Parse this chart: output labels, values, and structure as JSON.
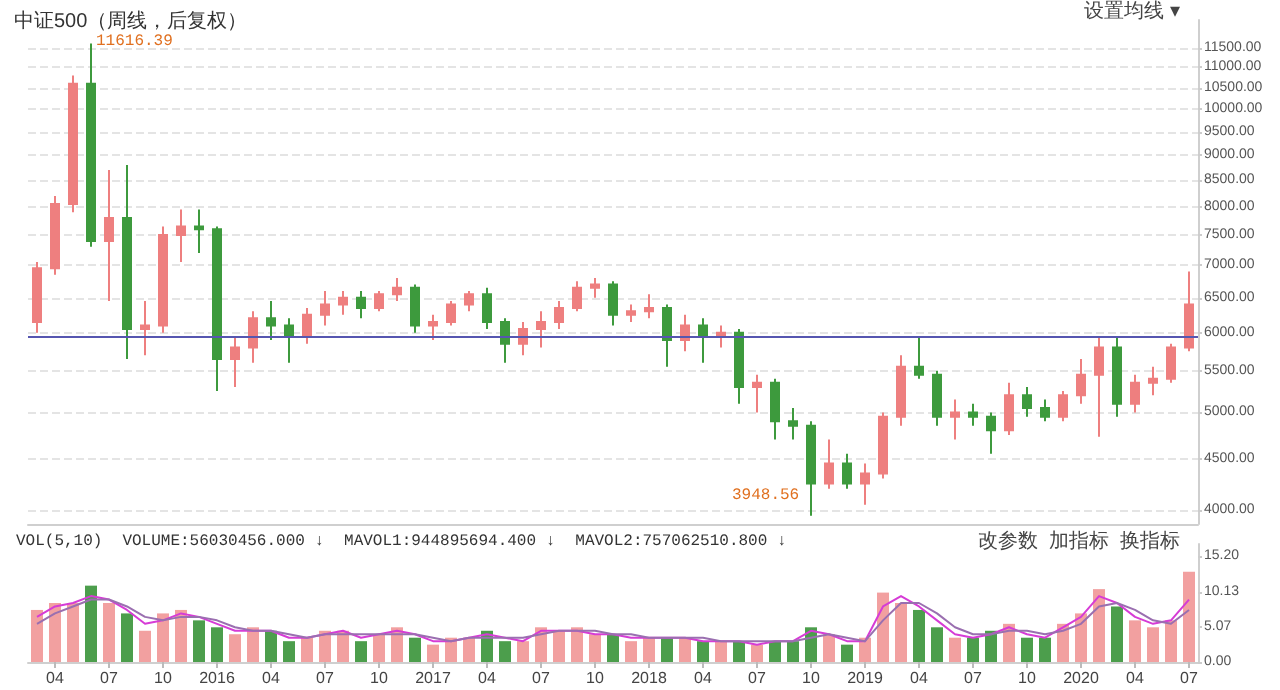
{
  "chart_data": [
    {
      "type": "candlestick",
      "title": "中证500（周线，后复权）",
      "categories": [
        null,
        "04",
        null,
        null,
        "07",
        null,
        null,
        "10",
        null,
        null,
        "2016",
        null,
        null,
        "04",
        null,
        null,
        "07",
        null,
        null,
        "10",
        null,
        null,
        "2017",
        null,
        null,
        "04",
        null,
        null,
        "07",
        null,
        null,
        "10",
        null,
        null,
        "2018",
        null,
        null,
        "04",
        null,
        null,
        "07",
        null,
        null,
        "10",
        null,
        null,
        "2019",
        null,
        null,
        "04",
        null,
        null,
        "07",
        null,
        null,
        "10",
        null,
        null,
        "2020",
        null,
        null,
        "04",
        null,
        null,
        "07"
      ],
      "ohlc": [
        [
          6150,
          7050,
          6000,
          6950
        ],
        [
          6950,
          8200,
          6850,
          8050
        ],
        [
          8050,
          10800,
          7900,
          10600
        ],
        [
          10600,
          11616.39,
          7300,
          7400
        ],
        [
          7400,
          8700,
          6450,
          7800
        ],
        [
          7800,
          8800,
          5650,
          6050
        ],
        [
          6050,
          6450,
          5700,
          6100
        ],
        [
          6100,
          7650,
          6000,
          7500
        ],
        [
          7500,
          7950,
          7050,
          7650
        ],
        [
          7650,
          7950,
          7200,
          7600
        ],
        [
          7600,
          7650,
          5250,
          5650
        ],
        [
          5650,
          5950,
          5300,
          5800
        ],
        [
          5800,
          6300,
          5600,
          6200
        ],
        [
          6200,
          6450,
          5900,
          6100
        ],
        [
          6100,
          6200,
          5600,
          5950
        ],
        [
          5950,
          6350,
          5850,
          6250
        ],
        [
          6250,
          6600,
          6100,
          6400
        ],
        [
          6400,
          6600,
          6250,
          6500
        ],
        [
          6500,
          6600,
          6200,
          6350
        ],
        [
          6350,
          6600,
          6300,
          6550
        ],
        [
          6550,
          6800,
          6450,
          6650
        ],
        [
          6650,
          6700,
          6000,
          6100
        ],
        [
          6100,
          6250,
          5900,
          6150
        ],
        [
          6150,
          6450,
          6100,
          6400
        ],
        [
          6400,
          6600,
          6300,
          6550
        ],
        [
          6550,
          6650,
          6050,
          6150
        ],
        [
          6150,
          6200,
          5600,
          5850
        ],
        [
          5850,
          6150,
          5700,
          6050
        ],
        [
          6050,
          6300,
          5800,
          6150
        ],
        [
          6150,
          6450,
          6050,
          6350
        ],
        [
          6350,
          6750,
          6300,
          6650
        ],
        [
          6650,
          6800,
          6500,
          6700
        ],
        [
          6700,
          6750,
          6100,
          6250
        ],
        [
          6250,
          6400,
          6150,
          6300
        ],
        [
          6300,
          6550,
          6200,
          6350
        ],
        [
          6350,
          6400,
          5550,
          5900
        ],
        [
          5900,
          6250,
          5750,
          6100
        ],
        [
          6100,
          6200,
          5600,
          5950
        ],
        [
          5950,
          6100,
          5800,
          6000
        ],
        [
          6000,
          6050,
          5100,
          5300
        ],
        [
          5300,
          5450,
          5000,
          5350
        ],
        [
          5350,
          5400,
          4700,
          4900
        ],
        [
          4900,
          5050,
          4700,
          4850
        ],
        [
          4850,
          4900,
          3948.56,
          4250
        ],
        [
          4250,
          4700,
          4200,
          4450
        ],
        [
          4450,
          4550,
          4200,
          4250
        ],
        [
          4250,
          4450,
          4050,
          4350
        ],
        [
          4350,
          5000,
          4300,
          4950
        ],
        [
          4950,
          5700,
          4850,
          5550
        ],
        [
          5550,
          5930,
          5400,
          5450
        ],
        [
          5450,
          5500,
          4850,
          4950
        ],
        [
          4950,
          5150,
          4700,
          5000
        ],
        [
          5000,
          5100,
          4850,
          4950
        ],
        [
          4950,
          5000,
          4550,
          4800
        ],
        [
          4800,
          5350,
          4750,
          5200
        ],
        [
          5200,
          5300,
          4950,
          5050
        ],
        [
          5050,
          5150,
          4900,
          4950
        ],
        [
          4950,
          5250,
          4900,
          5200
        ],
        [
          5200,
          5650,
          5100,
          5450
        ],
        [
          5450,
          5930,
          4730,
          5800
        ],
        [
          5800,
          5950,
          4950,
          5100
        ],
        [
          5100,
          5450,
          5000,
          5350
        ],
        [
          5350,
          5550,
          5200,
          5400
        ],
        [
          5400,
          5850,
          5350,
          5800
        ],
        [
          5800,
          6900,
          5750,
          6400
        ]
      ],
      "colors": [
        "#ee7f7f",
        "#ee7f7f",
        "#ee7f7f",
        "#3d9a3d",
        "#ee7f7f",
        "#3d9a3d",
        "#ee7f7f",
        "#ee7f7f",
        "#ee7f7f",
        "#3d9a3d",
        "#3d9a3d",
        "#ee7f7f",
        "#ee7f7f",
        "#3d9a3d",
        "#3d9a3d",
        "#ee7f7f",
        "#ee7f7f",
        "#ee7f7f",
        "#3d9a3d",
        "#ee7f7f",
        "#ee7f7f",
        "#3d9a3d",
        "#ee7f7f",
        "#ee7f7f",
        "#ee7f7f",
        "#3d9a3d",
        "#3d9a3d",
        "#ee7f7f",
        "#ee7f7f",
        "#ee7f7f",
        "#ee7f7f",
        "#ee7f7f",
        "#3d9a3d",
        "#ee7f7f",
        "#ee7f7f",
        "#3d9a3d",
        "#ee7f7f",
        "#3d9a3d",
        "#ee7f7f",
        "#3d9a3d",
        "#ee7f7f",
        "#3d9a3d",
        "#3d9a3d",
        "#3d9a3d",
        "#ee7f7f",
        "#3d9a3d",
        "#ee7f7f",
        "#ee7f7f",
        "#ee7f7f",
        "#3d9a3d",
        "#3d9a3d",
        "#ee7f7f",
        "#3d9a3d",
        "#3d9a3d",
        "#ee7f7f",
        "#3d9a3d",
        "#3d9a3d",
        "#ee7f7f",
        "#ee7f7f",
        "#ee7f7f",
        "#3d9a3d",
        "#ee7f7f",
        "#ee7f7f",
        "#ee7f7f",
        "#ee7f7f"
      ],
      "ylim": [
        3875,
        12260
      ],
      "log": "y",
      "yticks": [
        {
          "value": 4000,
          "label": "4000.00"
        },
        {
          "value": 4500,
          "label": "4500.00"
        },
        {
          "value": 5000,
          "label": "5000.00"
        },
        {
          "value": 5500,
          "label": "5500.00"
        },
        {
          "value": 6000,
          "label": "6000.00"
        },
        {
          "value": 6500,
          "label": "6500.00"
        },
        {
          "value": 7000,
          "label": "7000.00"
        },
        {
          "value": 7500,
          "label": "7500.00"
        },
        {
          "value": 8000,
          "label": "8000.00"
        },
        {
          "value": 8500,
          "label": "8500.00"
        },
        {
          "value": 9000,
          "label": "9000.00"
        },
        {
          "value": 9500,
          "label": "9500.00"
        },
        {
          "value": 10000,
          "label": "10000.00"
        },
        {
          "value": 10500,
          "label": "10500.00"
        },
        {
          "value": 11000,
          "label": "11000.00"
        },
        {
          "value": 11500,
          "label": "11500.00"
        }
      ],
      "grid": "y",
      "tick_labels": "y",
      "ref_lines": [
        {
          "axis": "y",
          "value": 5940,
          "color": "#5656b0"
        }
      ],
      "annotations": [
        "11616.39",
        "3948.56",
        "设置均线 ▾"
      ]
    },
    {
      "type": "bar",
      "categories": [
        null,
        "04",
        null,
        null,
        "07",
        null,
        null,
        "10",
        null,
        null,
        "2016",
        null,
        null,
        "04",
        null,
        null,
        "07",
        null,
        null,
        "10",
        null,
        null,
        "2017",
        null,
        null,
        "04",
        null,
        null,
        "07",
        null,
        null,
        "10",
        null,
        null,
        "2018",
        null,
        null,
        "04",
        null,
        null,
        "07",
        null,
        null,
        "10",
        null,
        null,
        "2019",
        null,
        null,
        "04",
        null,
        null,
        "07",
        null,
        null,
        "10",
        null,
        null,
        "2020",
        null,
        null,
        "04",
        null,
        null,
        "07"
      ],
      "series": [
        {
          "colors": [
            "#f2a0a0",
            "#f2a0a0",
            "#f2a0a0",
            "#4c9e4c",
            "#f2a0a0",
            "#4c9e4c",
            "#f2a0a0",
            "#f2a0a0",
            "#f2a0a0",
            "#4c9e4c",
            "#4c9e4c",
            "#f2a0a0",
            "#f2a0a0",
            "#4c9e4c",
            "#4c9e4c",
            "#f2a0a0",
            "#f2a0a0",
            "#f2a0a0",
            "#4c9e4c",
            "#f2a0a0",
            "#f2a0a0",
            "#4c9e4c",
            "#f2a0a0",
            "#f2a0a0",
            "#f2a0a0",
            "#4c9e4c",
            "#4c9e4c",
            "#f2a0a0",
            "#f2a0a0",
            "#f2a0a0",
            "#f2a0a0",
            "#f2a0a0",
            "#4c9e4c",
            "#f2a0a0",
            "#f2a0a0",
            "#4c9e4c",
            "#f2a0a0",
            "#4c9e4c",
            "#f2a0a0",
            "#4c9e4c",
            "#f2a0a0",
            "#4c9e4c",
            "#4c9e4c",
            "#4c9e4c",
            "#f2a0a0",
            "#4c9e4c",
            "#f2a0a0",
            "#f2a0a0",
            "#f2a0a0",
            "#4c9e4c",
            "#4c9e4c",
            "#f2a0a0",
            "#4c9e4c",
            "#4c9e4c",
            "#f2a0a0",
            "#4c9e4c",
            "#4c9e4c",
            "#f2a0a0",
            "#f2a0a0",
            "#f2a0a0",
            "#4c9e4c",
            "#f2a0a0",
            "#f2a0a0",
            "#f2a0a0",
            "#f2a0a0"
          ],
          "values": [
            7.5,
            8.5,
            8.5,
            11,
            8.5,
            7,
            4.5,
            7,
            7.5,
            6,
            5,
            4,
            5,
            4.5,
            3,
            3.5,
            4.5,
            4.5,
            3,
            4,
            5,
            3.5,
            2.5,
            3.5,
            3.5,
            4.5,
            3,
            3,
            5,
            4.5,
            5,
            4,
            4,
            3,
            3.5,
            3.5,
            3.5,
            3,
            3,
            3,
            2.5,
            3,
            3,
            5,
            4,
            2.5,
            3.5,
            10,
            8.5,
            7.5,
            5,
            3.5,
            3.5,
            4.5,
            5.5,
            3.5,
            3.5,
            5.5,
            7,
            10.5,
            8,
            6,
            5,
            6,
            13
          ]
        },
        {
          "type": "line",
          "color": "#d63cd6",
          "values": [
            6.5,
            8,
            8.5,
            9.5,
            9,
            7.5,
            5.5,
            6,
            7,
            6.5,
            5.5,
            4.5,
            4.5,
            4.5,
            3.5,
            3.5,
            4,
            4.5,
            3.5,
            4,
            4.5,
            4,
            3,
            3,
            3.5,
            4,
            3.5,
            3,
            4.5,
            4.5,
            4.5,
            4,
            4,
            3.5,
            3.5,
            3.5,
            3.5,
            3,
            3,
            3,
            2.5,
            3,
            3,
            4.5,
            4,
            3,
            3,
            8,
            9.5,
            8,
            6,
            4,
            3.5,
            4,
            5,
            4,
            3.5,
            5,
            6.5,
            9.5,
            8.5,
            6.5,
            5.5,
            6,
            9
          ]
        },
        {
          "type": "line",
          "color": "#9a6fb0",
          "values": [
            5.5,
            7,
            8,
            9,
            9,
            8,
            6.5,
            6,
            6.5,
            6.5,
            6,
            5,
            4.5,
            4.5,
            4,
            3.5,
            4,
            4,
            4,
            4,
            4,
            4,
            3.5,
            3,
            3.5,
            3.5,
            3.5,
            3.5,
            4,
            4.5,
            4.5,
            4.5,
            4,
            4,
            3.5,
            3.5,
            3.5,
            3.5,
            3,
            3,
            3,
            3,
            3,
            3.5,
            4,
            3.5,
            3,
            6,
            8.5,
            8.5,
            7,
            5,
            4,
            4,
            4.5,
            4.5,
            4,
            4.5,
            5.5,
            8,
            8.5,
            7.5,
            6,
            5.5,
            7.5
          ]
        }
      ],
      "ylim": [
        0,
        17
      ],
      "yticks": [
        {
          "value": 0,
          "label": "0.00"
        },
        {
          "value": 5.07,
          "label": "5.07"
        },
        {
          "value": 10.13,
          "label": "10.13"
        },
        {
          "value": 15.2,
          "label": "15.20"
        }
      ],
      "marker": "none",
      "annotations": [
        "VOL(5,10)",
        "VOLUME:56030456.000 ↓",
        "MAVOL1:944895694.400 ↓",
        "MAVOL2:757062510.800 ↓",
        "改参数  加指标  换指标"
      ]
    }
  ]
}
